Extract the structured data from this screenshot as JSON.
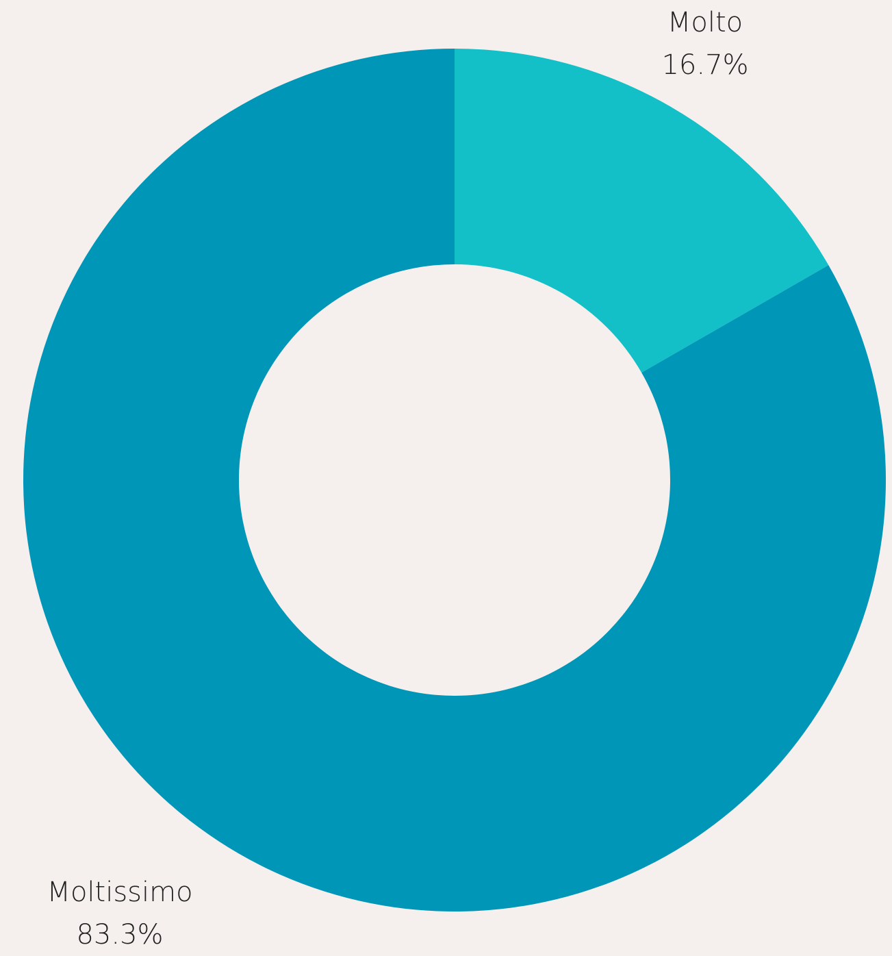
{
  "chart_data": {
    "type": "pie",
    "donut": true,
    "categories": [
      "Molto",
      "Moltissimo"
    ],
    "values": [
      16.7,
      83.3
    ],
    "value_labels": [
      "16.7%",
      "83.3%"
    ],
    "colors": [
      "#13c0c8",
      "#0096b8"
    ]
  }
}
